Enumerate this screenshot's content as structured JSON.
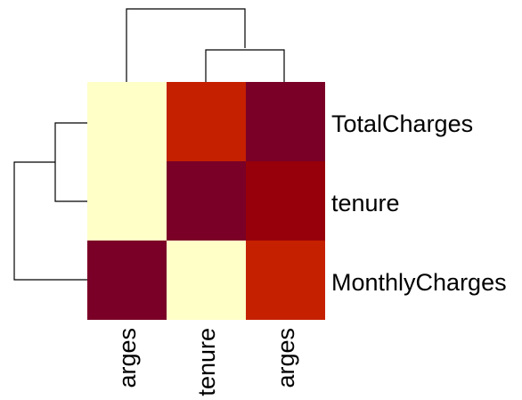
{
  "chart_data": {
    "type": "heatmap",
    "title": "",
    "row_labels": [
      "TotalCharges",
      "tenure",
      "MonthlyCharges"
    ],
    "col_labels": [
      "MonthlyCharges",
      "tenure",
      "TotalCharges"
    ],
    "col_labels_visible": [
      "arges",
      "tenure",
      "arges"
    ],
    "values": [
      [
        0.1,
        0.65,
        1.0
      ],
      [
        0.1,
        1.0,
        0.83
      ],
      [
        1.0,
        0.1,
        0.65
      ]
    ],
    "color_scale": [
      "#FFFFC8",
      "#F58800",
      "#E23A00",
      "#A10000",
      "#7A0027"
    ],
    "row_dendrogram": "left",
    "col_dendrogram": "top",
    "legend": "none",
    "grid": false
  }
}
